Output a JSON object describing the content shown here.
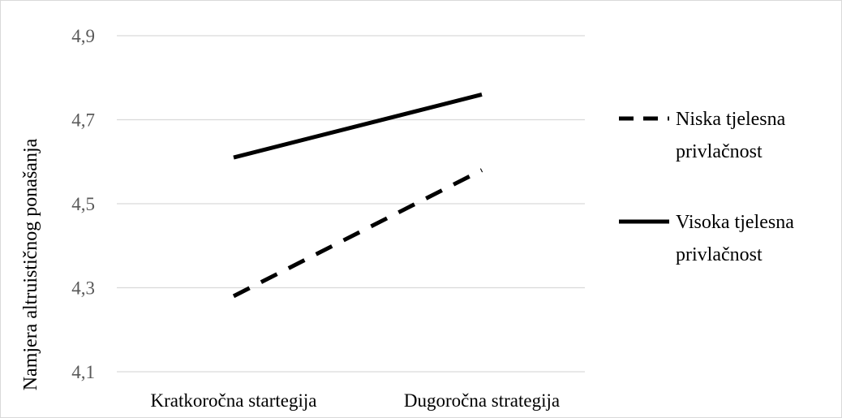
{
  "chart_data": {
    "type": "line",
    "title": "",
    "xlabel": "",
    "ylabel": "Namjera altruističnog ponašanja",
    "categories": [
      "Kratkoročna startegija",
      "Dugoročna strategija"
    ],
    "ylim": [
      4.1,
      4.9
    ],
    "yticks": [
      "4,1",
      "4,3",
      "4,5",
      "4,7",
      "4,9"
    ],
    "grid": true,
    "legend_position": "right",
    "series": [
      {
        "name": "Niska tjelesna privlačnost",
        "name_lines": [
          "Niska tjelesna",
          "privlačnost"
        ],
        "style": "dashed",
        "color": "#000000",
        "values": [
          4.28,
          4.58
        ]
      },
      {
        "name": "Visoka tjelesna privlačnost",
        "name_lines": [
          "Visoka tjelesna",
          "privlačnost"
        ],
        "style": "solid",
        "color": "#000000",
        "values": [
          4.61,
          4.76
        ]
      }
    ]
  }
}
